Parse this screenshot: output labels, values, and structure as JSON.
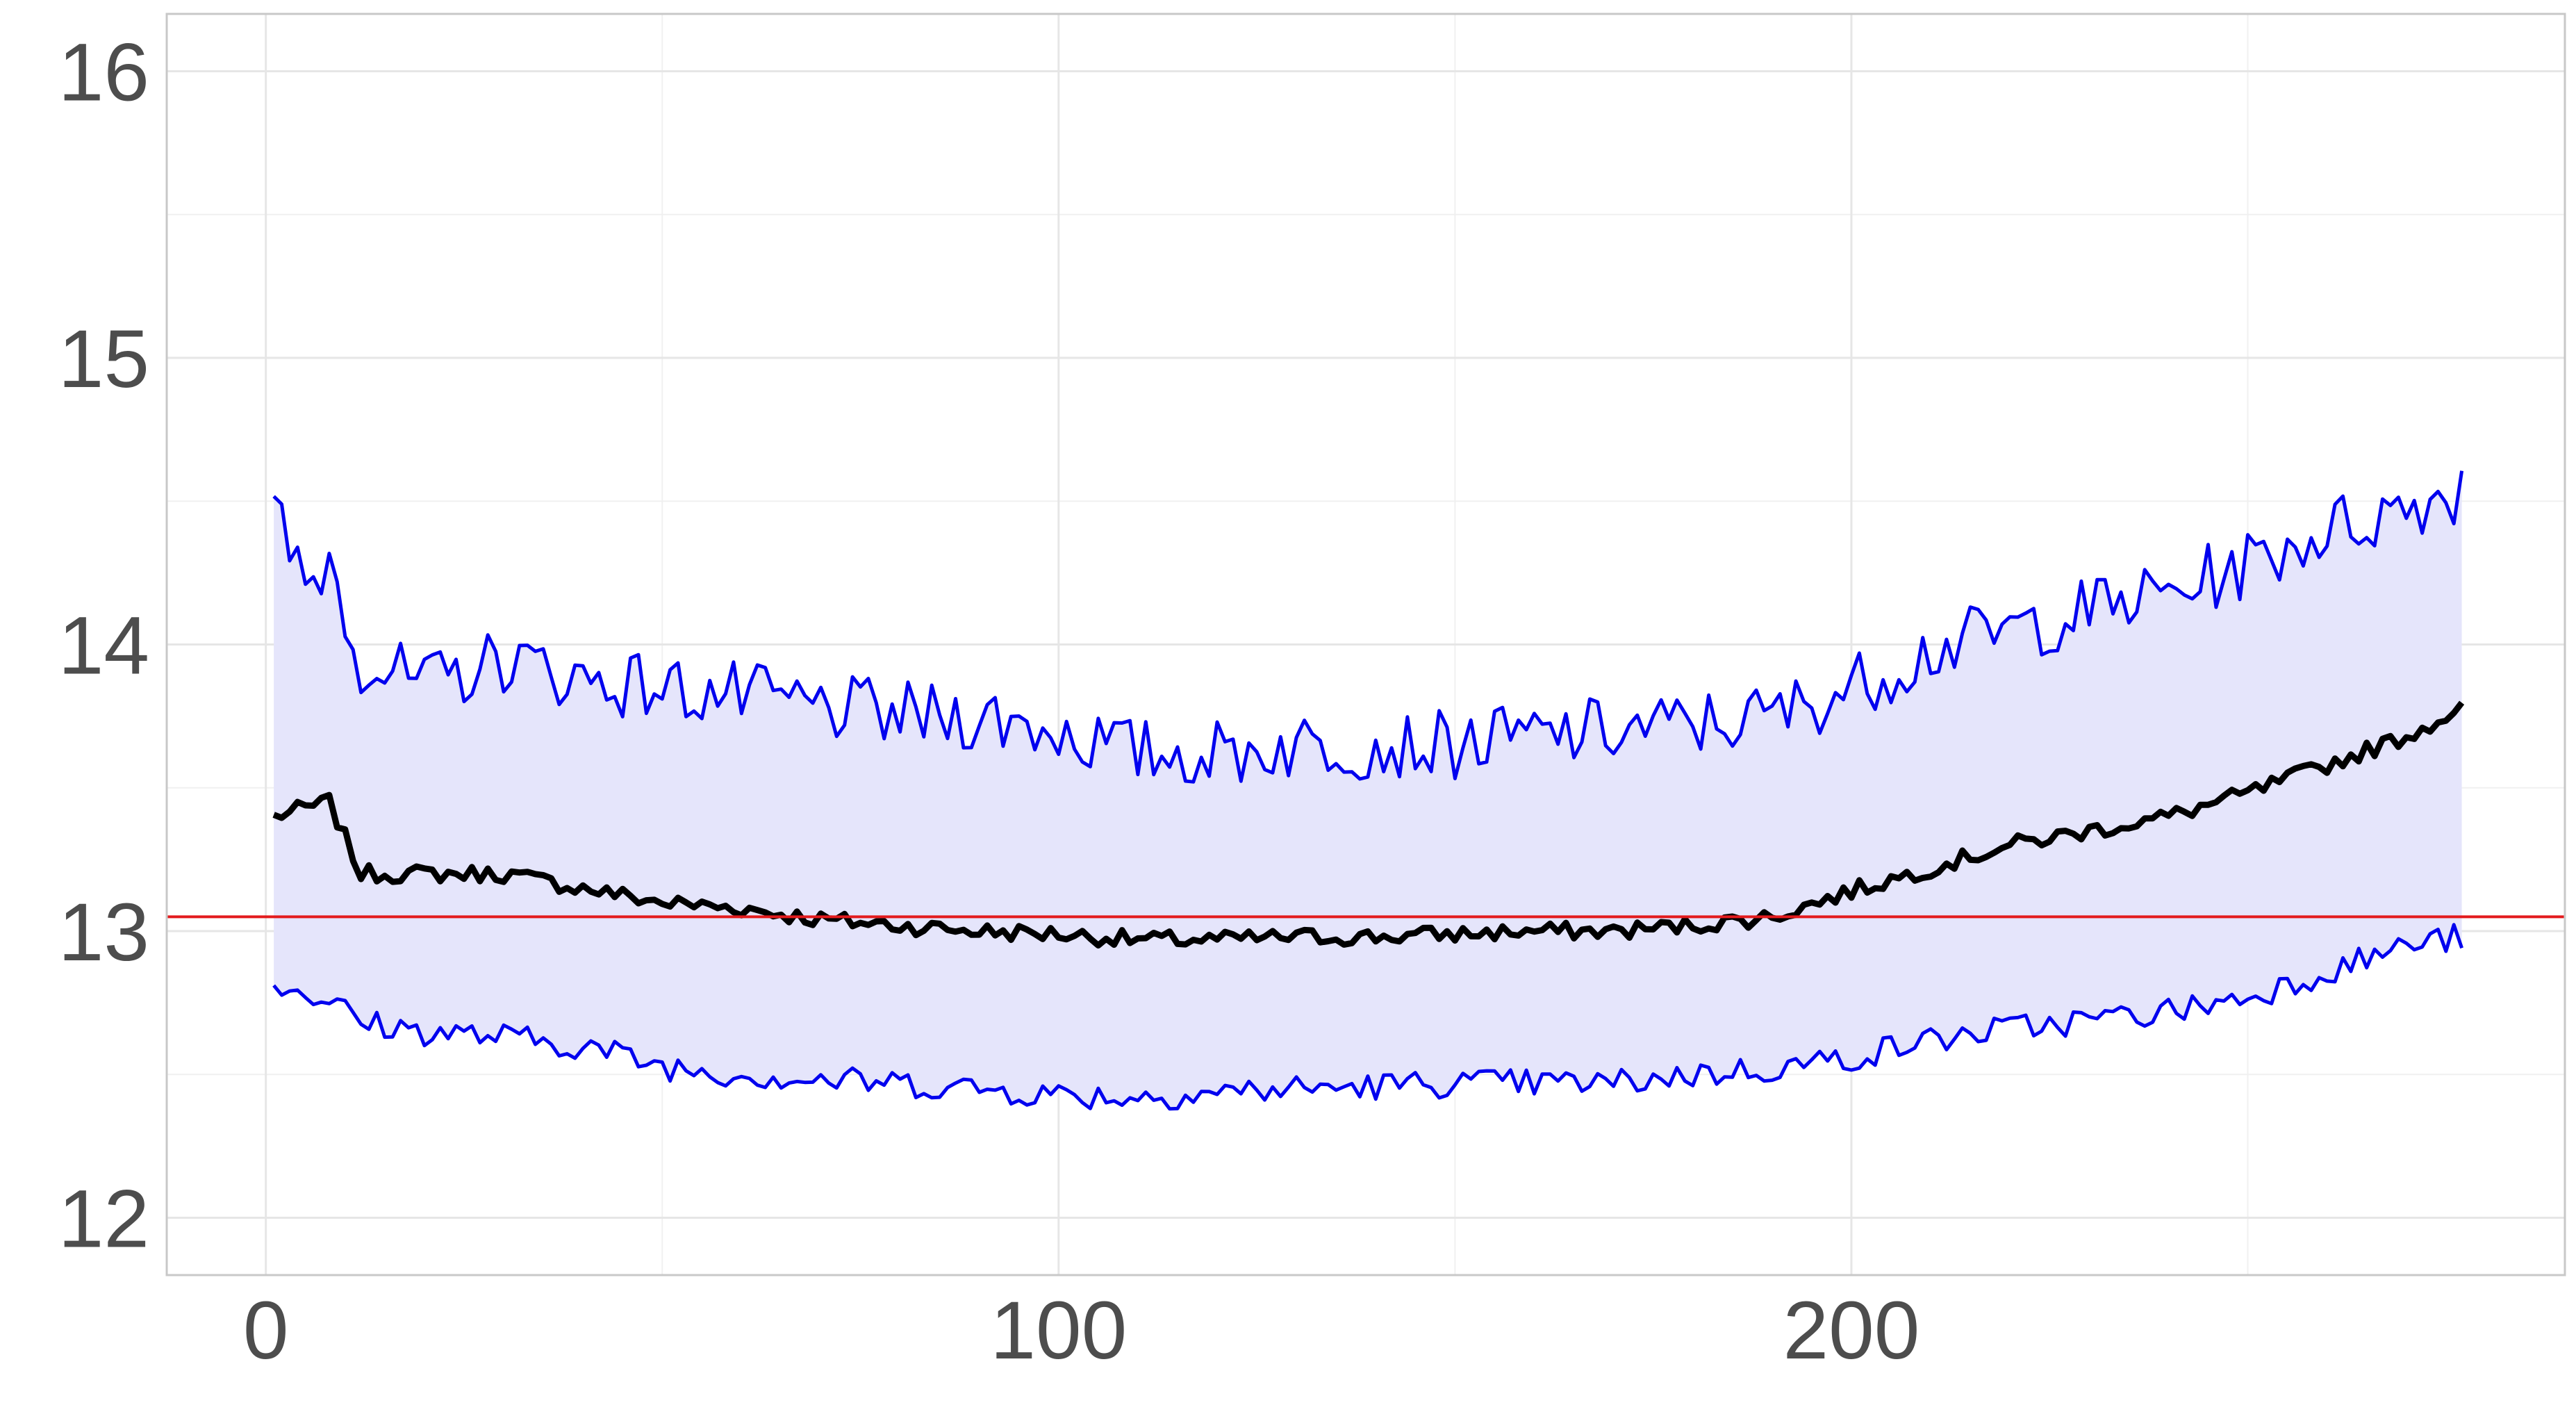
{
  "chart_data": {
    "type": "line",
    "title": "",
    "xlabel": "",
    "ylabel": "",
    "xlim": [
      -12.5,
      290
    ],
    "ylim": [
      11.8,
      16.2
    ],
    "x_ticks": [
      0,
      100,
      200
    ],
    "x_tick_labels": [
      "0",
      "100",
      "200"
    ],
    "y_ticks": [
      12,
      13,
      14,
      15,
      16
    ],
    "y_tick_labels": [
      "12",
      "13",
      "14",
      "15",
      "16"
    ],
    "grid": true,
    "legend": "none",
    "reference_line": {
      "y": 13.05,
      "color": "#e31a1c"
    },
    "band": {
      "color": "#e5e5fb",
      "lower": "lower",
      "upper": "upper"
    },
    "colors": {
      "center": "#000000",
      "bounds": "#0000ee",
      "band": "#e5e5fb",
      "reference": "#e31a1c",
      "grid": "#e6e6e6",
      "panel_border": "#c8c8c8"
    },
    "x_start": 1,
    "x_end": 277,
    "series": [
      {
        "name": "",
        "role": "center",
        "knots": [
          [
            1,
            13.4
          ],
          [
            8,
            13.45
          ],
          [
            12,
            13.2
          ],
          [
            20,
            13.2
          ],
          [
            30,
            13.2
          ],
          [
            40,
            13.15
          ],
          [
            50,
            13.1
          ],
          [
            60,
            13.08
          ],
          [
            70,
            13.04
          ],
          [
            80,
            13.02
          ],
          [
            90,
            13.0
          ],
          [
            100,
            12.99
          ],
          [
            110,
            12.97
          ],
          [
            120,
            12.97
          ],
          [
            130,
            12.98
          ],
          [
            140,
            12.98
          ],
          [
            150,
            12.99
          ],
          [
            160,
            13.0
          ],
          [
            170,
            13.0
          ],
          [
            180,
            13.02
          ],
          [
            190,
            13.05
          ],
          [
            200,
            13.14
          ],
          [
            210,
            13.22
          ],
          [
            220,
            13.3
          ],
          [
            230,
            13.35
          ],
          [
            240,
            13.4
          ],
          [
            250,
            13.48
          ],
          [
            260,
            13.58
          ],
          [
            270,
            13.68
          ],
          [
            277,
            13.78
          ]
        ],
        "noise": 0.03
      },
      {
        "name": "",
        "role": "upper",
        "knots": [
          [
            1,
            14.45
          ],
          [
            5,
            14.2
          ],
          [
            8,
            14.3
          ],
          [
            12,
            13.95
          ],
          [
            20,
            13.85
          ],
          [
            30,
            13.95
          ],
          [
            40,
            13.88
          ],
          [
            50,
            13.85
          ],
          [
            60,
            13.82
          ],
          [
            70,
            13.78
          ],
          [
            80,
            13.75
          ],
          [
            90,
            13.75
          ],
          [
            100,
            13.7
          ],
          [
            110,
            13.62
          ],
          [
            120,
            13.62
          ],
          [
            130,
            13.65
          ],
          [
            140,
            13.65
          ],
          [
            150,
            13.65
          ],
          [
            160,
            13.68
          ],
          [
            170,
            13.7
          ],
          [
            180,
            13.72
          ],
          [
            190,
            13.75
          ],
          [
            200,
            13.85
          ],
          [
            210,
            13.98
          ],
          [
            220,
            14.05
          ],
          [
            230,
            14.12
          ],
          [
            240,
            14.18
          ],
          [
            250,
            14.28
          ],
          [
            260,
            14.4
          ],
          [
            270,
            14.48
          ],
          [
            277,
            14.55
          ]
        ],
        "noise": 0.12
      },
      {
        "name": "",
        "role": "lower",
        "knots": [
          [
            1,
            12.82
          ],
          [
            8,
            12.76
          ],
          [
            12,
            12.68
          ],
          [
            20,
            12.65
          ],
          [
            30,
            12.63
          ],
          [
            40,
            12.6
          ],
          [
            50,
            12.53
          ],
          [
            60,
            12.5
          ],
          [
            70,
            12.48
          ],
          [
            80,
            12.47
          ],
          [
            90,
            12.45
          ],
          [
            100,
            12.43
          ],
          [
            110,
            12.42
          ],
          [
            120,
            12.44
          ],
          [
            130,
            12.45
          ],
          [
            140,
            12.46
          ],
          [
            150,
            12.47
          ],
          [
            160,
            12.47
          ],
          [
            170,
            12.47
          ],
          [
            180,
            12.5
          ],
          [
            190,
            12.52
          ],
          [
            200,
            12.56
          ],
          [
            210,
            12.62
          ],
          [
            220,
            12.66
          ],
          [
            230,
            12.69
          ],
          [
            240,
            12.72
          ],
          [
            250,
            12.77
          ],
          [
            260,
            12.86
          ],
          [
            270,
            12.95
          ],
          [
            277,
            12.98
          ]
        ],
        "noise": 0.05
      }
    ]
  }
}
